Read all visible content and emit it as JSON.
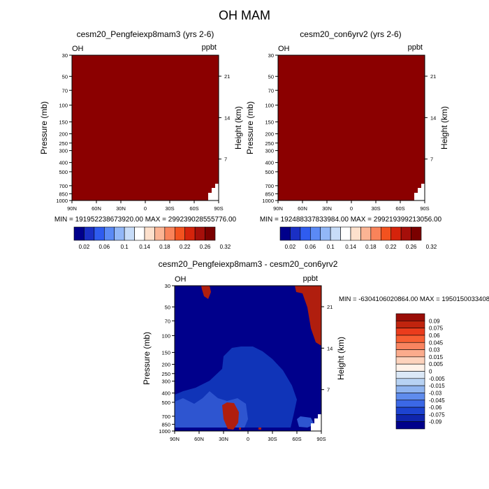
{
  "page": {
    "title": "OH MAM"
  },
  "colors": {
    "panel_fill": "#8b0000",
    "diff_background": "#00008b",
    "diff_mid": "#1034b8",
    "diff_light": "#2e55d0",
    "diff_positive": "#b01e0e"
  },
  "colorbar_top": {
    "labels": [
      "0.02",
      "0.06",
      "0.1",
      "0.14",
      "0.18",
      "0.22",
      "0.26",
      "0.32"
    ],
    "colors": [
      "#00008b",
      "#1a2fc4",
      "#2f5cef",
      "#5b8af5",
      "#92b7f7",
      "#c7dcf8",
      "#ffffff",
      "#fde0cc",
      "#fbb494",
      "#f9835a",
      "#f3521f",
      "#d5230b",
      "#a50f0a",
      "#7a0000"
    ]
  },
  "colorbar_diff": {
    "labels": [
      "0.09",
      "0.075",
      "0.06",
      "0.045",
      "0.03",
      "0.015",
      "0.005",
      "0",
      "-0.005",
      "-0.015",
      "-0.03",
      "-0.045",
      "-0.06",
      "-0.075",
      "-0.09"
    ],
    "colors": [
      "#9a0d07",
      "#c0240e",
      "#ea3c1c",
      "#f75f33",
      "#f98460",
      "#fbab8c",
      "#fdd3bd",
      "#fff2e9",
      "#dbe8f7",
      "#b7d2f3",
      "#8fb4ef",
      "#5f8ced",
      "#3b68e6",
      "#1d43d0",
      "#0f25ad",
      "#00008b"
    ]
  },
  "chart_data": [
    {
      "type": "heatmap",
      "title": "cesm20_Pengfeiexp8mam3 (yrs 2-6)",
      "left_label": "OH",
      "right_label": "ppbt",
      "xlabel": "",
      "ylabel": "Pressure (mb)",
      "y2label": "Height (km)",
      "x_ticks": [
        "90N",
        "60N",
        "30N",
        "0",
        "30S",
        "60S",
        "90S"
      ],
      "y_ticks": [
        30,
        50,
        70,
        100,
        150,
        200,
        250,
        300,
        400,
        500,
        700,
        850,
        1000
      ],
      "y2_ticks": [
        21,
        14,
        7
      ],
      "min_max_text": "MIN = 191952238673920.00   MAX = 299239028555776.00"
    },
    {
      "type": "heatmap",
      "title": "cesm20_con6yrv2 (yrs 2-6)",
      "left_label": "OH",
      "right_label": "ppbt",
      "xlabel": "",
      "ylabel": "Pressure (mb)",
      "y2label": "Height (km)",
      "x_ticks": [
        "90N",
        "60N",
        "30N",
        "0",
        "30S",
        "60S",
        "90S"
      ],
      "y_ticks": [
        30,
        50,
        70,
        100,
        150,
        200,
        250,
        300,
        400,
        500,
        700,
        850,
        1000
      ],
      "y2_ticks": [
        21,
        14,
        7
      ],
      "min_max_text": "MIN = 192488337833984.00   MAX = 299219399213056.00"
    },
    {
      "type": "heatmap",
      "title": "cesm20_Pengfeiexp8mam3 - cesm20_con6yrv2",
      "left_label": "OH",
      "right_label": "ppbt",
      "xlabel": "",
      "ylabel": "Pressure (mb)",
      "y2label": "Height (km)",
      "x_ticks": [
        "90N",
        "60N",
        "30N",
        "0",
        "30S",
        "60S",
        "90S"
      ],
      "y_ticks": [
        30,
        50,
        70,
        100,
        150,
        200,
        250,
        300,
        400,
        500,
        700,
        850,
        1000
      ],
      "y2_ticks": [
        21,
        14,
        7
      ],
      "min_max_text": "MIN = -6304106020864.00   MAX = 1950150033408"
    }
  ]
}
